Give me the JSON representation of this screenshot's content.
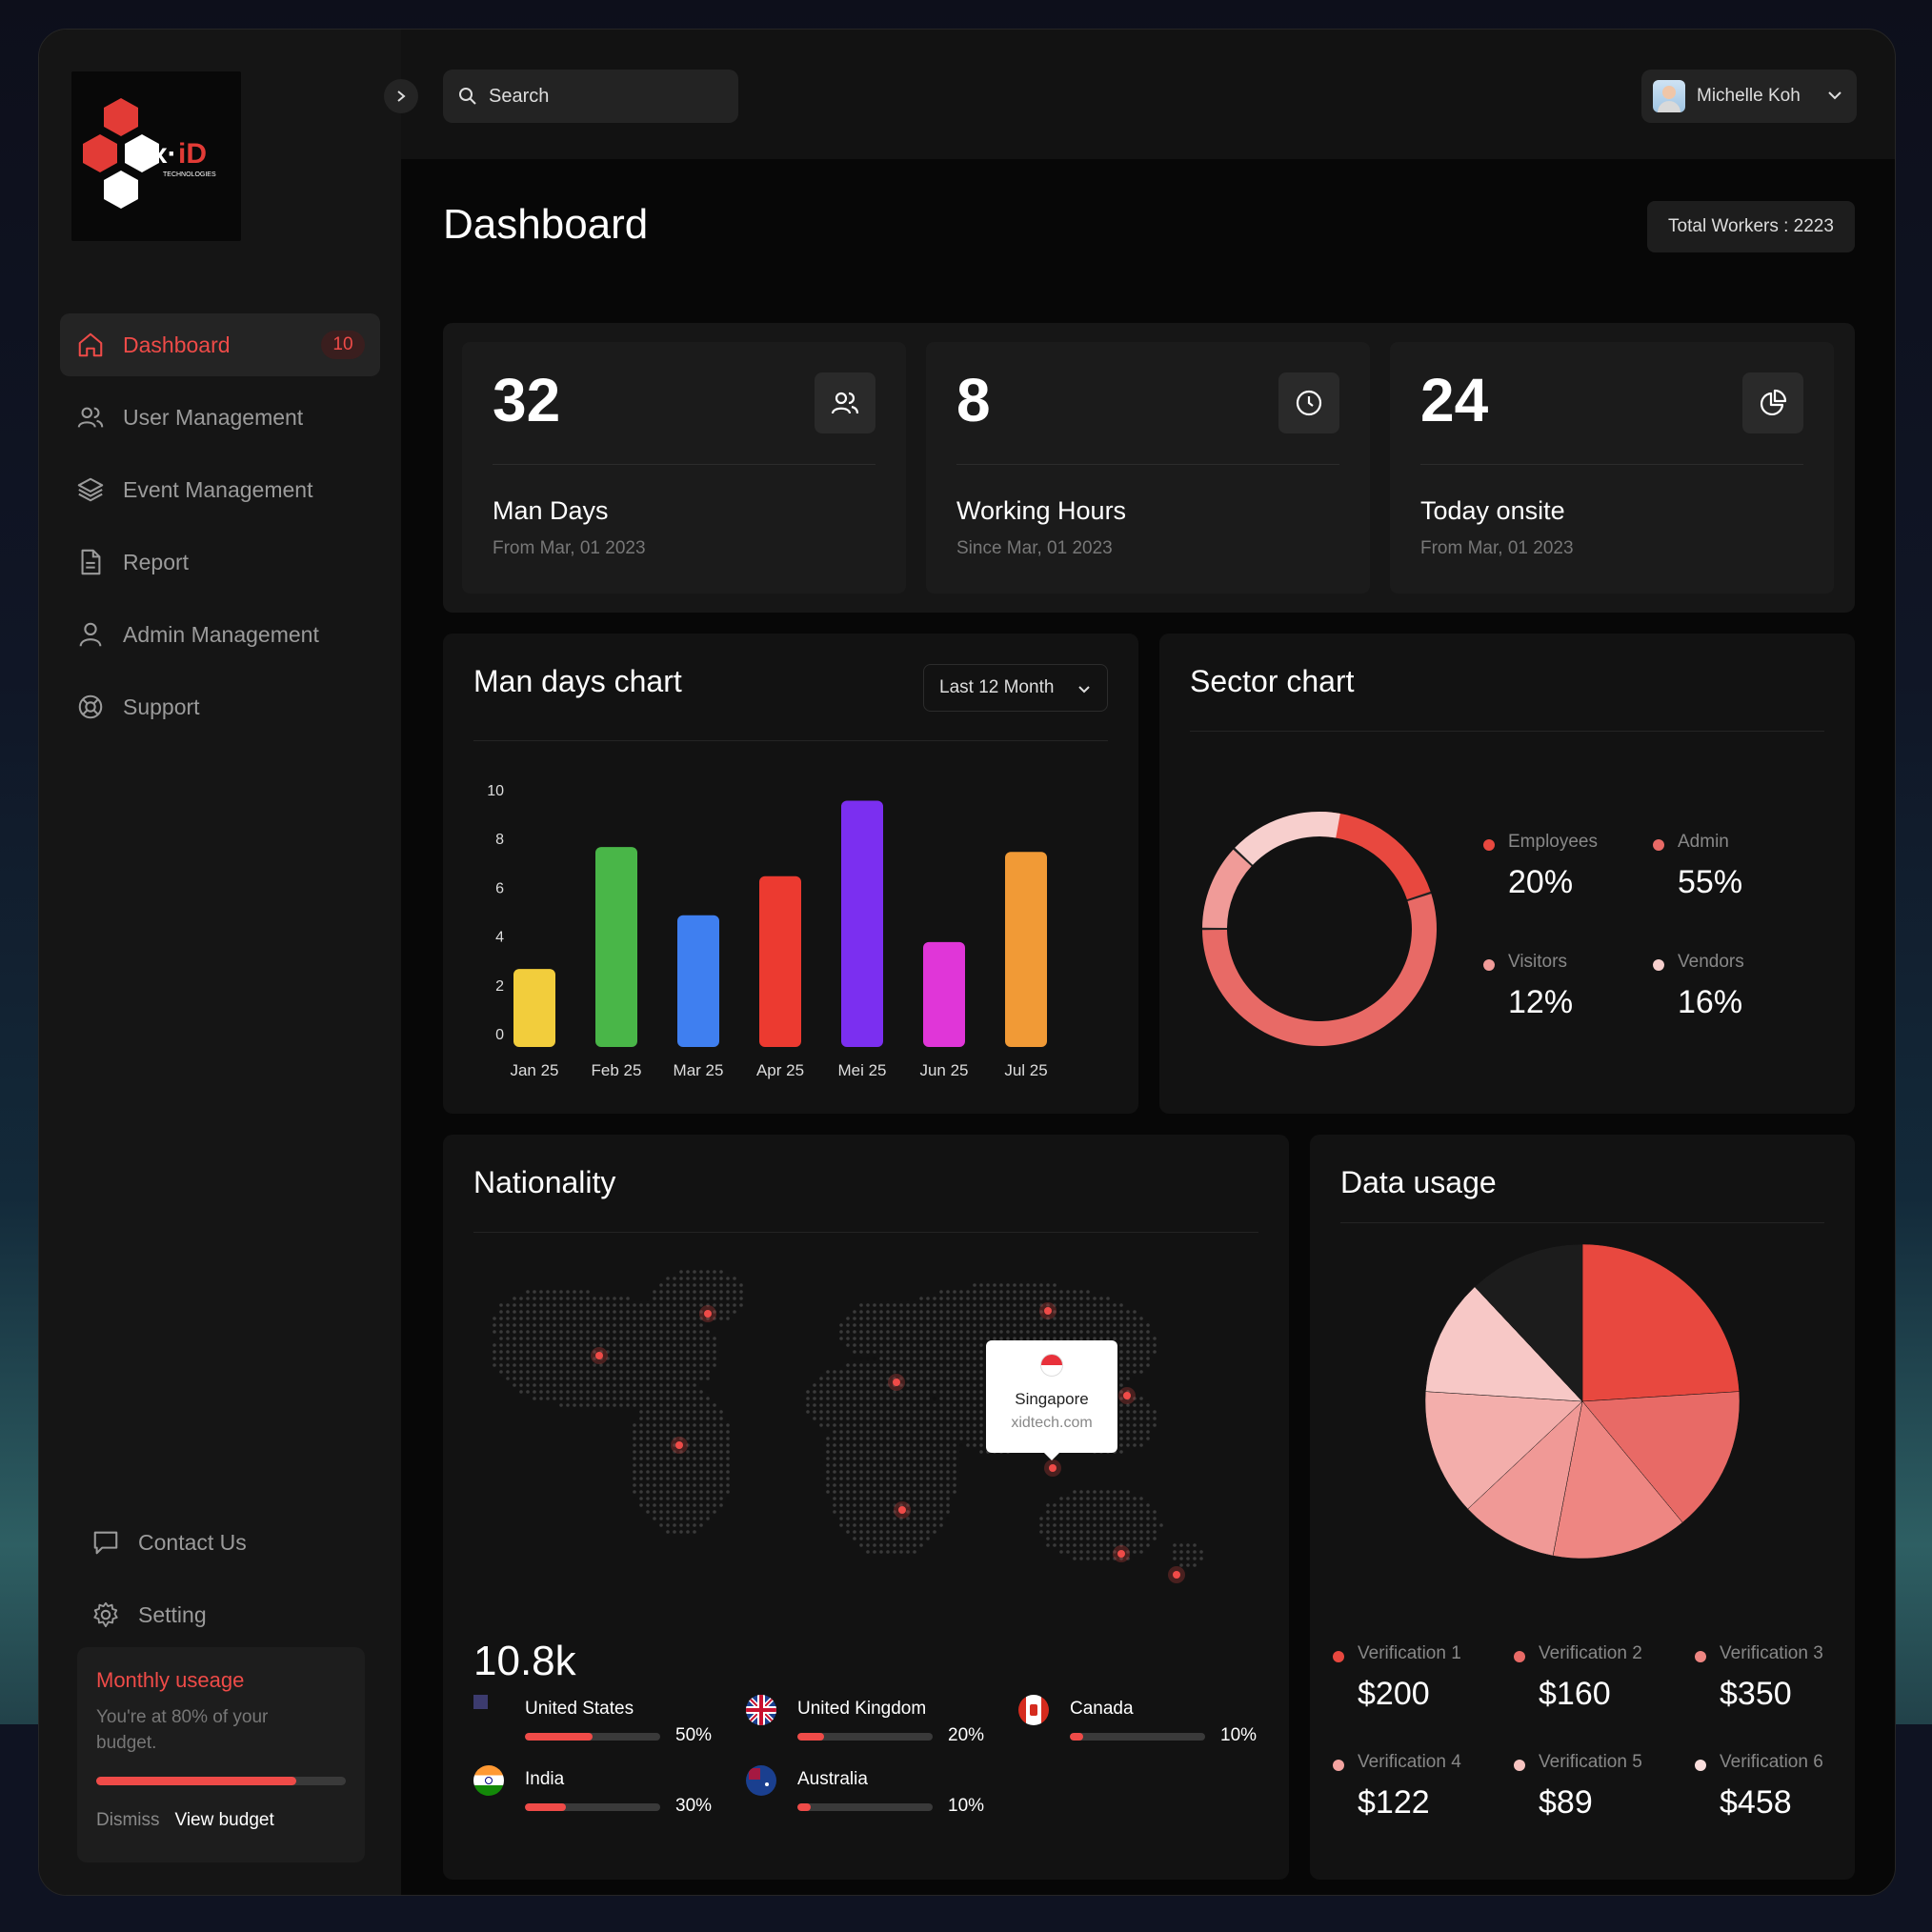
{
  "brand": {
    "logo_text": "x·iD",
    "logo_sub": "TECHNOLOGIES",
    "accent": "#ef4b48"
  },
  "header": {
    "search_label": "Search",
    "user_name": "Michelle Koh"
  },
  "sidebar": {
    "items": [
      {
        "label": "Dashboard",
        "icon": "home-icon",
        "badge": "10",
        "active": true
      },
      {
        "label": "User Management",
        "icon": "users-icon"
      },
      {
        "label": "Event Management",
        "icon": "layers-icon"
      },
      {
        "label": "Report",
        "icon": "file-icon"
      },
      {
        "label": "Admin Management",
        "icon": "user-icon"
      },
      {
        "label": "Support",
        "icon": "lifebuoy-icon"
      }
    ],
    "bottom_items": [
      {
        "label": "Contact Us",
        "icon": "message-icon"
      },
      {
        "label": "Setting",
        "icon": "gear-icon"
      }
    ],
    "usage": {
      "title": "Monthly useage",
      "text": "You're at 80% of your budget.",
      "progress": 0.8,
      "dismiss": "Dismiss",
      "view": "View budget"
    }
  },
  "main": {
    "title": "Dashboard",
    "total_workers": "Total Workers : 2223",
    "stats": [
      {
        "value": "32",
        "label": "Man Days",
        "sub": "From Mar, 01 2023",
        "icon": "users-icon"
      },
      {
        "value": "8",
        "label": "Working Hours",
        "sub": "Since Mar, 01 2023",
        "icon": "clock-icon"
      },
      {
        "value": "24",
        "label": "Today onsite",
        "sub": "From Mar, 01 2023",
        "icon": "pie-icon"
      }
    ],
    "man_days": {
      "title": "Man days chart",
      "range": "Last 12 Month"
    },
    "sector": {
      "title": "Sector chart",
      "legend": [
        {
          "name": "Employees",
          "value": "20%",
          "color": "#e8483f"
        },
        {
          "name": "Admin",
          "value": "55%",
          "color": "#e86a66"
        },
        {
          "name": "Visitors",
          "value": "12%",
          "color": "#f09b98"
        },
        {
          "name": "Vendors",
          "value": "16%",
          "color": "#f7cfcd"
        }
      ]
    },
    "nationality": {
      "title": "Nationality",
      "total": "10.8k",
      "tooltip": {
        "name": "Singapore",
        "domain": "xidtech.com"
      },
      "countries": [
        {
          "name": "United States",
          "pct": "50%",
          "value": 0.5,
          "flag": "us"
        },
        {
          "name": "United Kingdom",
          "pct": "20%",
          "value": 0.2,
          "flag": "uk"
        },
        {
          "name": "Canada",
          "pct": "10%",
          "value": 0.1,
          "flag": "ca"
        },
        {
          "name": "India",
          "pct": "30%",
          "value": 0.3,
          "flag": "in"
        },
        {
          "name": "Australia",
          "pct": "10%",
          "value": 0.1,
          "flag": "au"
        }
      ]
    },
    "data_usage": {
      "title": "Data usage",
      "legend": [
        {
          "name": "Verification 1",
          "value": "$200",
          "color": "#e8483f"
        },
        {
          "name": "Verification 2",
          "value": "$160",
          "color": "#e86a66"
        },
        {
          "name": "Verification 3",
          "value": "$350",
          "color": "#ee8682"
        },
        {
          "name": "Verification 4",
          "value": "$122",
          "color": "#f3a3a0"
        },
        {
          "name": "Verification 5",
          "value": "$89",
          "color": "#f7c4c1"
        },
        {
          "name": "Verification 6",
          "value": "$458",
          "color": "#fadedd"
        }
      ]
    }
  },
  "chart_data": [
    {
      "type": "bar",
      "title": "Man days chart",
      "categories": [
        "Jan 25",
        "Feb 25",
        "Mar 25",
        "Apr 25",
        "Mei 25",
        "Jun 25",
        "Jul 25"
      ],
      "values": [
        3.2,
        8.2,
        5.4,
        7,
        10.1,
        4.3,
        8
      ],
      "colors": [
        "#f2cd3c",
        "#49b648",
        "#3f7ff0",
        "#ec3a30",
        "#7b2ff0",
        "#e036d8",
        "#f19a36"
      ],
      "yticks": [
        0,
        2,
        4,
        6,
        8,
        10
      ],
      "ylim": [
        0,
        10
      ]
    },
    {
      "type": "pie",
      "title": "Sector chart",
      "donut": true,
      "segments": [
        {
          "label": "Employees",
          "value": 20
        },
        {
          "label": "Admin",
          "value": 55
        },
        {
          "label": "Visitors",
          "value": 12
        },
        {
          "label": "Vendors",
          "value": 16
        }
      ]
    },
    {
      "type": "pie",
      "title": "Data usage",
      "segments": [
        {
          "label": "Verification 1",
          "value": 24,
          "color": "#e8483f"
        },
        {
          "label": "Verification 2",
          "value": 15,
          "color": "#e86a66"
        },
        {
          "label": "Verification 3",
          "value": 14,
          "color": "#ee8682"
        },
        {
          "label": "Verification 4",
          "value": 10,
          "color": "#f09996"
        },
        {
          "label": "Verification 5",
          "value": 13,
          "color": "#f3aeab"
        },
        {
          "label": "Verification 6",
          "value": 12,
          "color": "#f7c8c6"
        },
        {
          "label": "Other",
          "value": 12,
          "color": "#1c1c1c"
        }
      ]
    }
  ]
}
